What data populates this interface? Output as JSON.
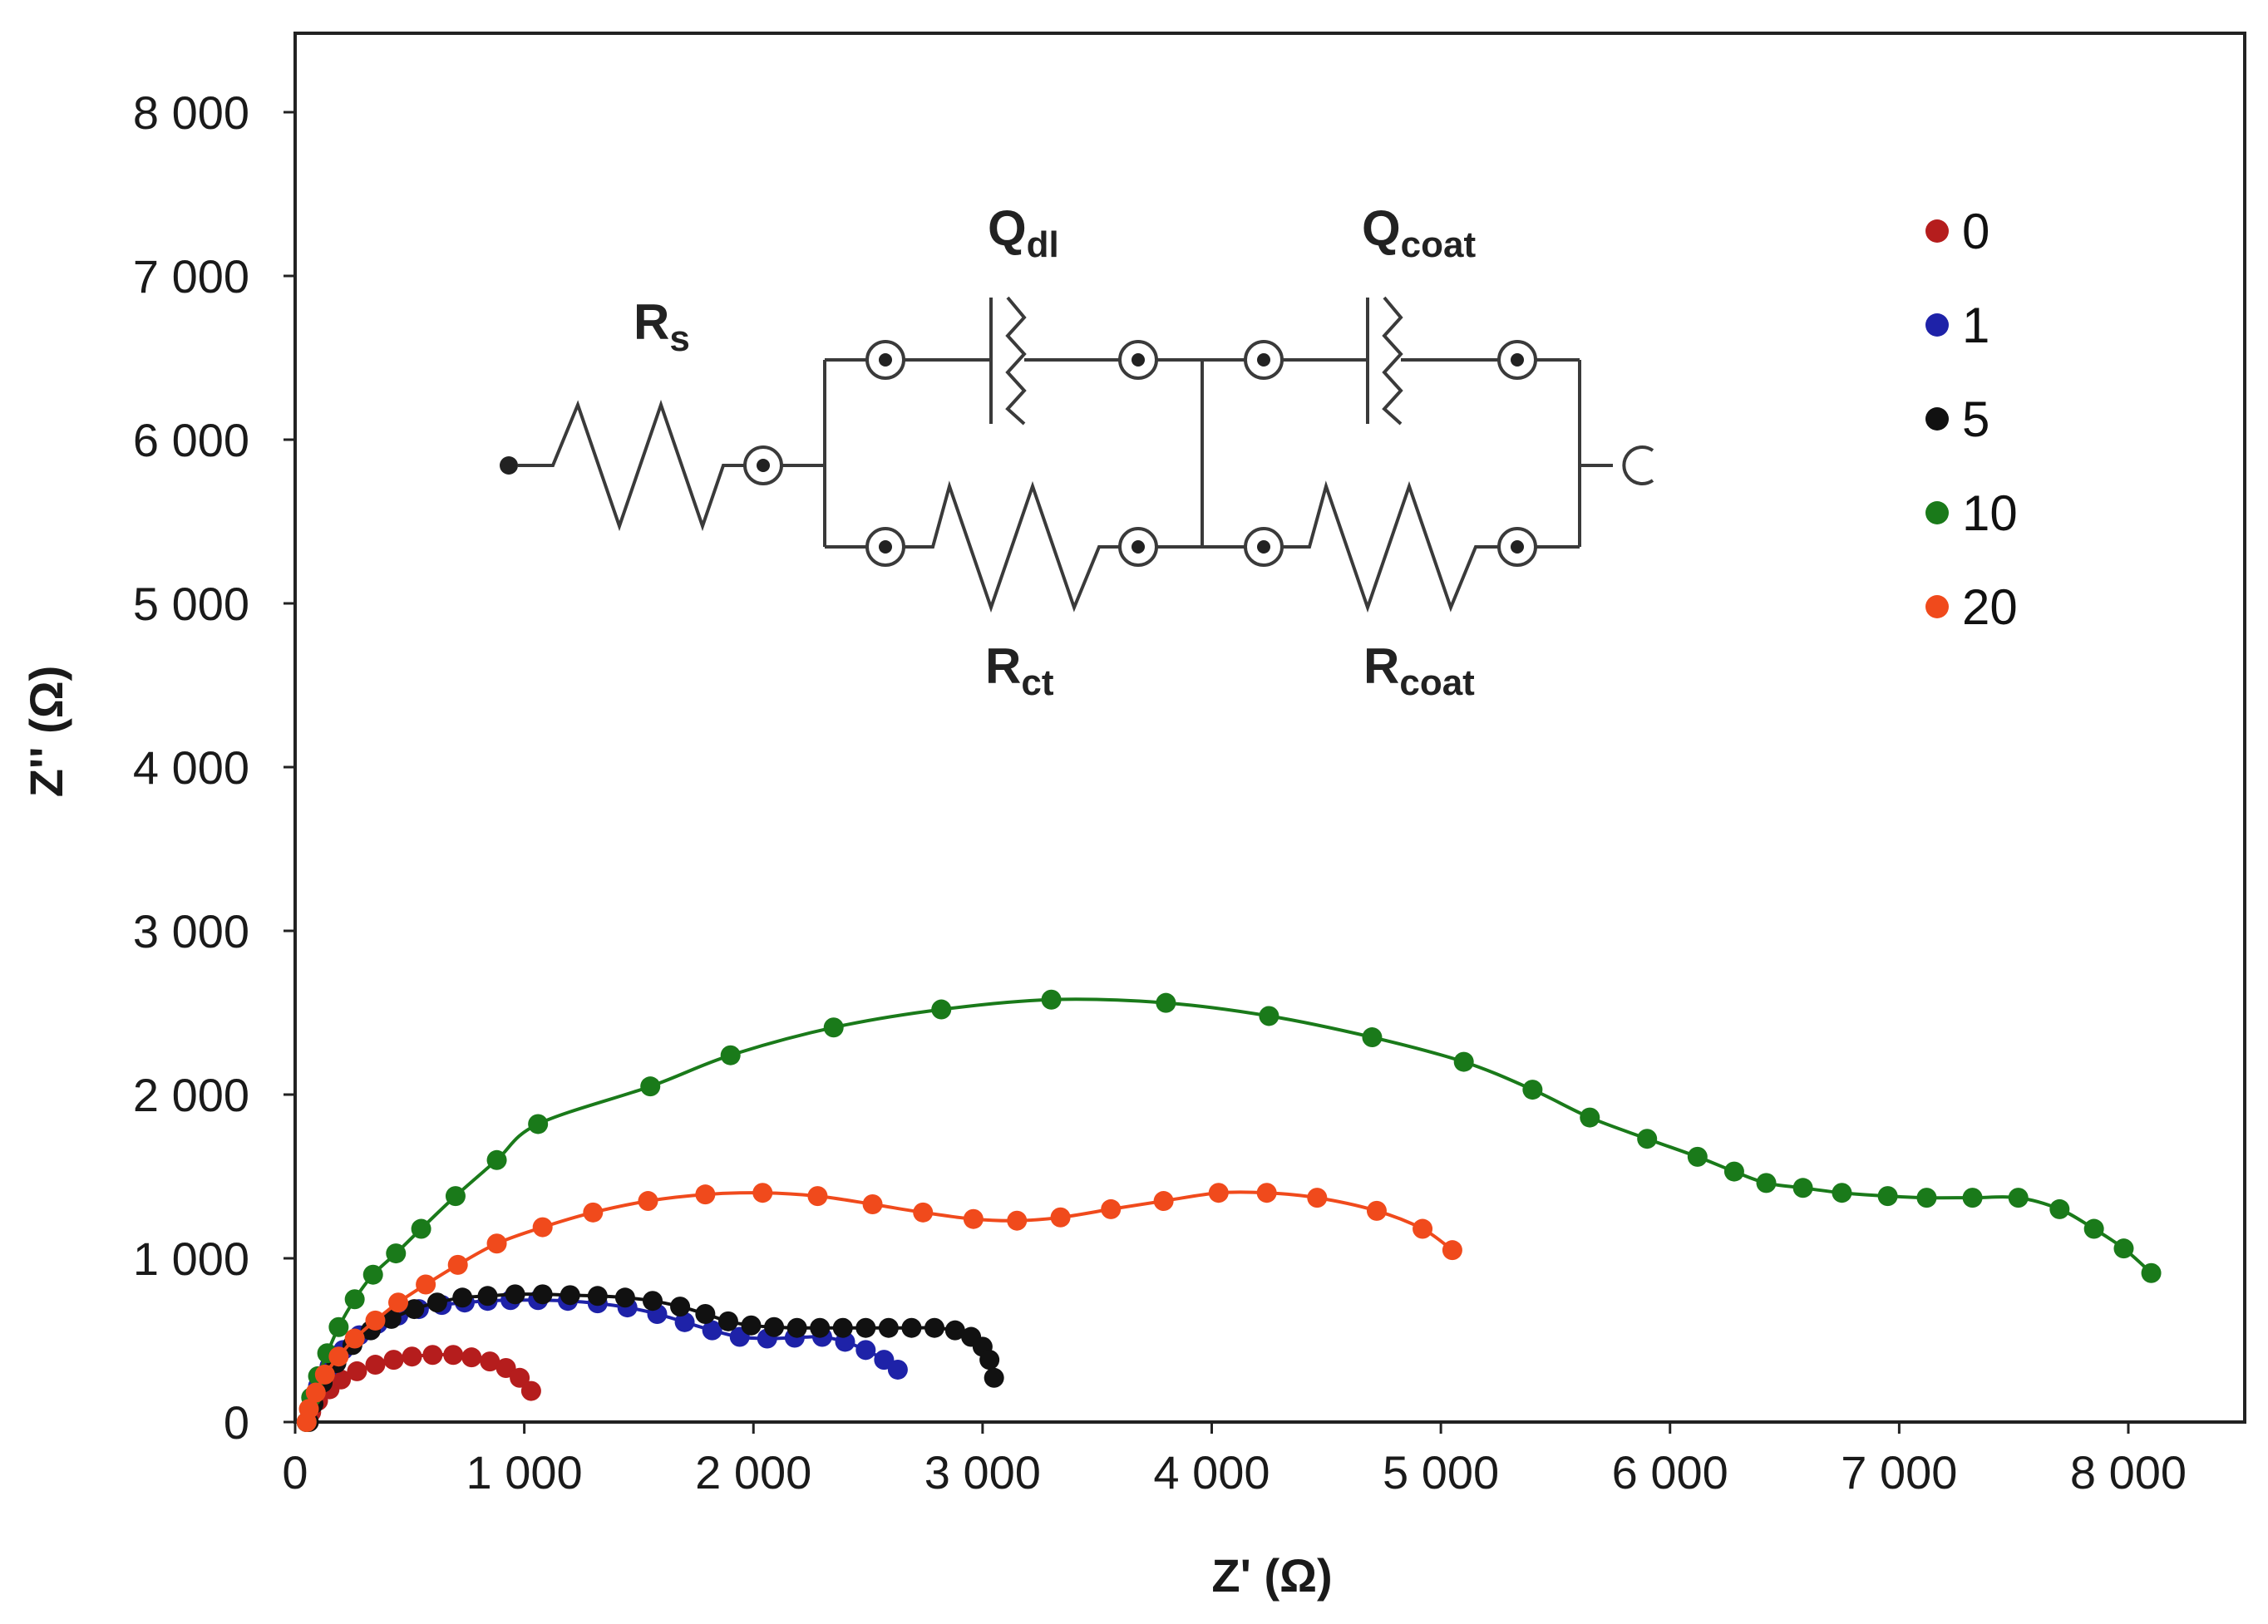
{
  "chart_data": {
    "type": "scatter",
    "title": "",
    "xlabel": "Z' (Ω)",
    "ylabel": "Z'' (Ω)",
    "xlim": [
      0,
      8500
    ],
    "ylim": [
      0,
      8500
    ],
    "x_ticks": [
      0,
      1000,
      2000,
      3000,
      4000,
      5000,
      6000,
      7000,
      8000
    ],
    "x_tick_labels": [
      "0",
      "1 000",
      "2 000",
      "3 000",
      "4 000",
      "5 000",
      "6 000",
      "7 000",
      "8 000"
    ],
    "y_ticks": [
      0,
      1000,
      2000,
      3000,
      4000,
      5000,
      6000,
      7000,
      8000
    ],
    "y_tick_labels": [
      "0",
      "1 000",
      "2 000",
      "3 000",
      "4 000",
      "5 000",
      "6 000",
      "7 000",
      "8 000"
    ],
    "grid": false,
    "legend_position": "top-right",
    "series": [
      {
        "name": "0",
        "color": "#b51d1d",
        "points": [
          [
            50,
            0
          ],
          [
            70,
            60
          ],
          [
            100,
            130
          ],
          [
            150,
            200
          ],
          [
            200,
            260
          ],
          [
            270,
            310
          ],
          [
            350,
            350
          ],
          [
            430,
            380
          ],
          [
            510,
            400
          ],
          [
            600,
            410
          ],
          [
            690,
            410
          ],
          [
            770,
            395
          ],
          [
            850,
            370
          ],
          [
            920,
            330
          ],
          [
            980,
            270
          ],
          [
            1030,
            190
          ]
        ]
      },
      {
        "name": "1",
        "color": "#1e22a8",
        "points": [
          [
            50,
            0
          ],
          [
            70,
            100
          ],
          [
            100,
            220
          ],
          [
            150,
            340
          ],
          [
            210,
            440
          ],
          [
            280,
            530
          ],
          [
            360,
            600
          ],
          [
            450,
            650
          ],
          [
            540,
            690
          ],
          [
            640,
            715
          ],
          [
            740,
            730
          ],
          [
            840,
            740
          ],
          [
            940,
            745
          ],
          [
            1060,
            745
          ],
          [
            1190,
            740
          ],
          [
            1320,
            725
          ],
          [
            1450,
            700
          ],
          [
            1580,
            660
          ],
          [
            1700,
            610
          ],
          [
            1820,
            560
          ],
          [
            1940,
            520
          ],
          [
            2060,
            510
          ],
          [
            2180,
            515
          ],
          [
            2300,
            520
          ],
          [
            2400,
            490
          ],
          [
            2490,
            440
          ],
          [
            2570,
            380
          ],
          [
            2630,
            320
          ]
        ]
      },
      {
        "name": "5",
        "color": "#111111",
        "points": [
          [
            60,
            0
          ],
          [
            80,
            110
          ],
          [
            120,
            240
          ],
          [
            180,
            360
          ],
          [
            250,
            470
          ],
          [
            330,
            560
          ],
          [
            420,
            630
          ],
          [
            520,
            690
          ],
          [
            620,
            730
          ],
          [
            730,
            760
          ],
          [
            840,
            770
          ],
          [
            960,
            780
          ],
          [
            1080,
            780
          ],
          [
            1200,
            775
          ],
          [
            1320,
            770
          ],
          [
            1440,
            760
          ],
          [
            1560,
            740
          ],
          [
            1680,
            705
          ],
          [
            1790,
            660
          ],
          [
            1890,
            615
          ],
          [
            1990,
            590
          ],
          [
            2090,
            580
          ],
          [
            2190,
            575
          ],
          [
            2290,
            575
          ],
          [
            2390,
            575
          ],
          [
            2490,
            575
          ],
          [
            2590,
            575
          ],
          [
            2690,
            575
          ],
          [
            2790,
            575
          ],
          [
            2880,
            560
          ],
          [
            2950,
            520
          ],
          [
            3000,
            460
          ],
          [
            3030,
            380
          ],
          [
            3050,
            270
          ]
        ]
      },
      {
        "name": "10",
        "color": "#1a7a1a",
        "points": [
          [
            50,
            0
          ],
          [
            70,
            150
          ],
          [
            100,
            280
          ],
          [
            140,
            420
          ],
          [
            190,
            580
          ],
          [
            260,
            750
          ],
          [
            340,
            900
          ],
          [
            440,
            1030
          ],
          [
            550,
            1180
          ],
          [
            700,
            1380
          ],
          [
            880,
            1600
          ],
          [
            1060,
            1820
          ],
          [
            1550,
            2050
          ],
          [
            1900,
            2240
          ],
          [
            2350,
            2410
          ],
          [
            2820,
            2520
          ],
          [
            3300,
            2580
          ],
          [
            3800,
            2560
          ],
          [
            4250,
            2480
          ],
          [
            4700,
            2350
          ],
          [
            5100,
            2200
          ],
          [
            5400,
            2030
          ],
          [
            5650,
            1860
          ],
          [
            5900,
            1730
          ],
          [
            6120,
            1620
          ],
          [
            6280,
            1530
          ],
          [
            6420,
            1460
          ],
          [
            6580,
            1430
          ],
          [
            6750,
            1400
          ],
          [
            6950,
            1380
          ],
          [
            7120,
            1370
          ],
          [
            7320,
            1370
          ],
          [
            7520,
            1370
          ],
          [
            7700,
            1300
          ],
          [
            7850,
            1180
          ],
          [
            7980,
            1060
          ],
          [
            8100,
            910
          ]
        ]
      },
      {
        "name": "20",
        "color": "#f04a1c",
        "points": [
          [
            50,
            0
          ],
          [
            60,
            80
          ],
          [
            90,
            180
          ],
          [
            130,
            290
          ],
          [
            190,
            400
          ],
          [
            260,
            510
          ],
          [
            350,
            620
          ],
          [
            450,
            730
          ],
          [
            570,
            840
          ],
          [
            710,
            960
          ],
          [
            880,
            1090
          ],
          [
            1080,
            1190
          ],
          [
            1300,
            1280
          ],
          [
            1540,
            1350
          ],
          [
            1790,
            1390
          ],
          [
            2040,
            1400
          ],
          [
            2280,
            1380
          ],
          [
            2520,
            1330
          ],
          [
            2740,
            1280
          ],
          [
            2960,
            1240
          ],
          [
            3150,
            1230
          ],
          [
            3340,
            1250
          ],
          [
            3560,
            1300
          ],
          [
            3790,
            1350
          ],
          [
            4030,
            1400
          ],
          [
            4240,
            1400
          ],
          [
            4460,
            1370
          ],
          [
            4720,
            1290
          ],
          [
            4920,
            1180
          ],
          [
            5050,
            1050
          ]
        ]
      }
    ],
    "circuit": {
      "labels": {
        "rs_main": "R",
        "rs_sub": "s",
        "qdl_main": "Q",
        "qdl_sub": "dl",
        "qcoat_main": "Q",
        "qcoat_sub": "coat",
        "rct_main": "R",
        "rct_sub": "ct",
        "rcoat_main": "R",
        "rcoat_sub": "coat"
      }
    }
  }
}
